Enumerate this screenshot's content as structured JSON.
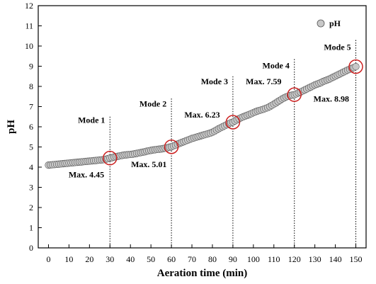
{
  "chart_data": {
    "type": "scatter",
    "xlabel": "Aeration time (min)",
    "ylabel": "pH",
    "xlim": [
      -5,
      155
    ],
    "ylim": [
      0,
      12
    ],
    "xticks": [
      0,
      10,
      20,
      30,
      40,
      50,
      60,
      70,
      80,
      90,
      100,
      110,
      120,
      130,
      140,
      150
    ],
    "yticks": [
      0,
      1,
      2,
      3,
      4,
      5,
      6,
      7,
      8,
      9,
      10,
      11,
      12
    ],
    "grid": false,
    "legend": {
      "position": "top-right",
      "entries": [
        "pH"
      ]
    },
    "series": [
      {
        "name": "pH",
        "marker": "circle",
        "color": "#c8c8c8",
        "edge_color": "#555555",
        "x": [
          0,
          1,
          2,
          3,
          4,
          5,
          6,
          7,
          8,
          9,
          10,
          11,
          12,
          13,
          14,
          15,
          16,
          17,
          18,
          19,
          20,
          21,
          22,
          23,
          24,
          25,
          26,
          27,
          28,
          29,
          30,
          31,
          32,
          33,
          34,
          35,
          36,
          37,
          38,
          39,
          40,
          41,
          42,
          43,
          44,
          45,
          46,
          47,
          48,
          49,
          50,
          51,
          52,
          53,
          54,
          55,
          56,
          57,
          58,
          59,
          60,
          61,
          62,
          63,
          64,
          65,
          66,
          67,
          68,
          69,
          70,
          71,
          72,
          73,
          74,
          75,
          76,
          77,
          78,
          79,
          80,
          81,
          82,
          83,
          84,
          85,
          86,
          87,
          88,
          89,
          90,
          91,
          92,
          93,
          94,
          95,
          96,
          97,
          98,
          99,
          100,
          101,
          102,
          103,
          104,
          105,
          106,
          107,
          108,
          109,
          110,
          111,
          112,
          113,
          114,
          115,
          116,
          117,
          118,
          119,
          120,
          121,
          122,
          123,
          124,
          125,
          126,
          127,
          128,
          129,
          130,
          131,
          132,
          133,
          134,
          135,
          136,
          137,
          138,
          139,
          140,
          141,
          142,
          143,
          144,
          145,
          146,
          147,
          148,
          149,
          150
        ],
        "y": [
          4.1,
          4.11,
          4.12,
          4.13,
          4.14,
          4.15,
          4.16,
          4.17,
          4.18,
          4.19,
          4.2,
          4.21,
          4.22,
          4.23,
          4.24,
          4.25,
          4.26,
          4.27,
          4.28,
          4.29,
          4.3,
          4.31,
          4.32,
          4.33,
          4.34,
          4.35,
          4.36,
          4.37,
          4.39,
          4.42,
          4.45,
          4.47,
          4.5,
          4.52,
          4.54,
          4.56,
          4.58,
          4.6,
          4.61,
          4.62,
          4.63,
          4.64,
          4.66,
          4.68,
          4.7,
          4.72,
          4.74,
          4.76,
          4.79,
          4.81,
          4.83,
          4.85,
          4.86,
          4.88,
          4.89,
          4.9,
          4.92,
          4.94,
          4.96,
          4.99,
          5.01,
          5.05,
          5.09,
          5.14,
          5.18,
          5.22,
          5.26,
          5.3,
          5.34,
          5.38,
          5.42,
          5.45,
          5.48,
          5.51,
          5.54,
          5.57,
          5.6,
          5.63,
          5.66,
          5.69,
          5.73,
          5.78,
          5.84,
          5.9,
          5.95,
          6.0,
          6.05,
          6.1,
          6.15,
          6.2,
          6.23,
          6.29,
          6.35,
          6.4,
          6.45,
          6.49,
          6.53,
          6.57,
          6.61,
          6.65,
          6.7,
          6.74,
          6.78,
          6.81,
          6.84,
          6.87,
          6.91,
          6.95,
          7.0,
          7.06,
          7.12,
          7.18,
          7.25,
          7.31,
          7.38,
          7.43,
          7.48,
          7.52,
          7.55,
          7.57,
          7.59,
          7.63,
          7.68,
          7.72,
          7.77,
          7.82,
          7.87,
          7.92,
          7.97,
          8.02,
          8.07,
          8.11,
          8.15,
          8.19,
          8.24,
          8.28,
          8.32,
          8.36,
          8.41,
          8.46,
          8.51,
          8.56,
          8.61,
          8.66,
          8.71,
          8.76,
          8.81,
          8.85,
          8.89,
          8.93,
          8.98
        ]
      }
    ],
    "modes": [
      {
        "label": "Mode 1",
        "x_end": 30,
        "label_x": 21,
        "label_y": 6.2
      },
      {
        "label": "Mode 2",
        "x_end": 60,
        "label_x": 51,
        "label_y": 7.0
      },
      {
        "label": "Mode 3",
        "x_end": 90,
        "label_x": 81,
        "label_y": 8.1
      },
      {
        "label": "Mode 4",
        "x_end": 120,
        "label_x": 111,
        "label_y": 8.9
      },
      {
        "label": "Mode 5",
        "x_end": 150,
        "label_x": 141,
        "label_y": 9.8
      }
    ],
    "mode_line_tops": [
      6.5,
      7.4,
      8.5,
      9.35,
      10.3
    ],
    "annotations": [
      {
        "label": "Max.  4.45",
        "x": 30,
        "y": 4.45,
        "text_x": 18.5,
        "text_y": 3.5
      },
      {
        "label": "Max.  5.01",
        "x": 60,
        "y": 5.01,
        "text_x": 49,
        "text_y": 4.0
      },
      {
        "label": "Max.  6.23",
        "x": 90,
        "y": 6.23,
        "text_x": 75,
        "text_y": 6.45
      },
      {
        "label": "Max.  7.59",
        "x": 120,
        "y": 7.59,
        "text_x": 105,
        "text_y": 8.1
      },
      {
        "label": "Max.  8.98",
        "x": 150,
        "y": 8.98,
        "text_x": 138,
        "text_y": 7.25
      }
    ],
    "highlight_color": "#cc1f1f"
  }
}
